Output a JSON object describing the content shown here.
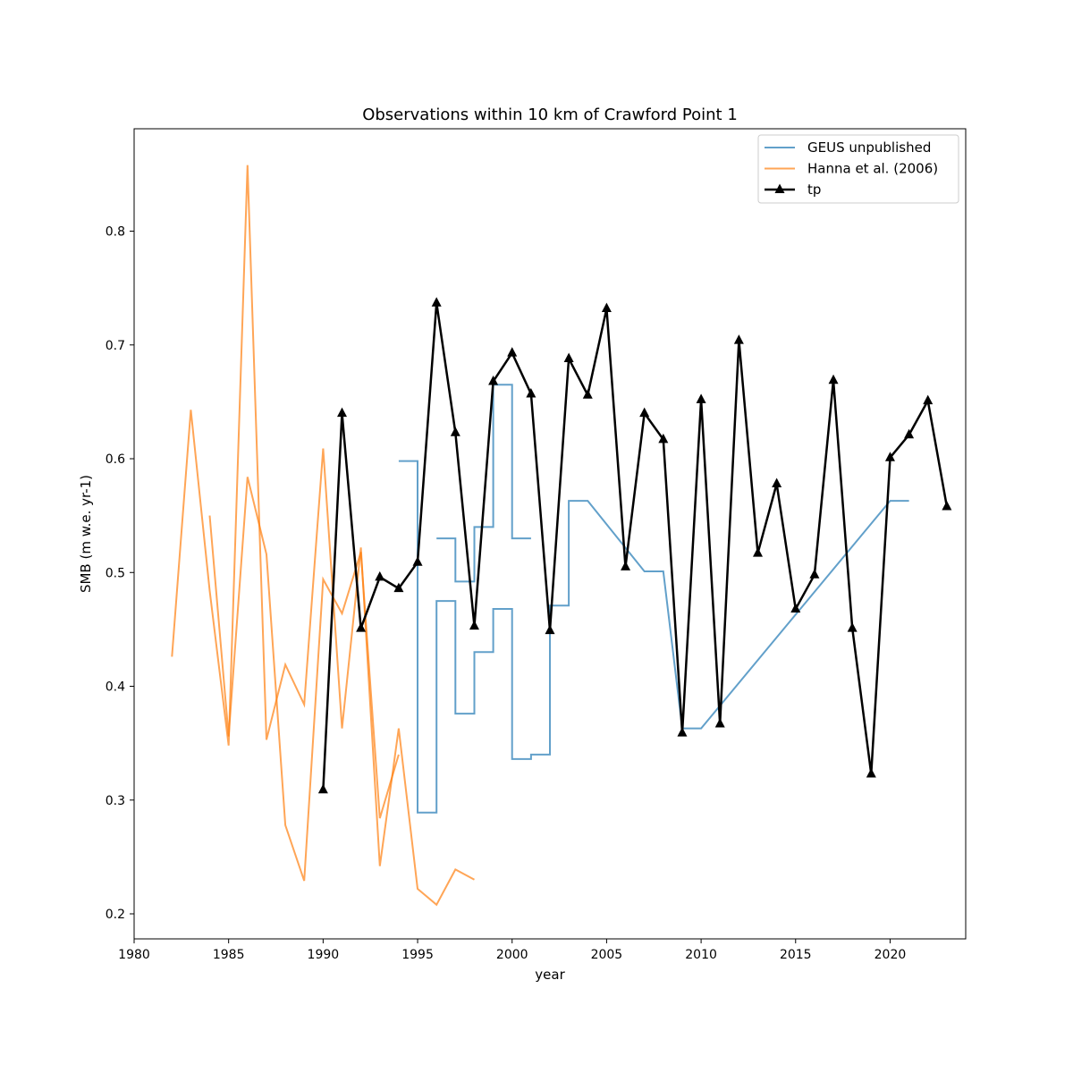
{
  "chart_data": {
    "type": "line",
    "title": "Observations within 10 km of Crawford Point 1",
    "xlabel": "year",
    "ylabel": "SMB (m w.e. yr-1)",
    "xlim": [
      1980,
      2024
    ],
    "ylim": [
      0.178,
      0.89
    ],
    "x_ticks": [
      1980,
      1985,
      1990,
      1995,
      2000,
      2005,
      2010,
      2015,
      2020
    ],
    "y_ticks": [
      0.2,
      0.3,
      0.4,
      0.5,
      0.6,
      0.7,
      0.8
    ],
    "grid": false,
    "legend_position": "top-right",
    "series": [
      {
        "name": "GEUS unpublished",
        "color": "#1f77b4",
        "style": "step",
        "segments": [
          [
            [
              1994,
              0.598
            ],
            [
              1995,
              0.598
            ],
            [
              1995,
              0.289
            ],
            [
              1996,
              0.289
            ],
            [
              1996,
              0.475
            ],
            [
              1997,
              0.475
            ],
            [
              1997,
              0.376
            ],
            [
              1998,
              0.376
            ],
            [
              1998,
              0.43
            ],
            [
              1999,
              0.43
            ],
            [
              1999,
              0.468
            ],
            [
              2000,
              0.468
            ],
            [
              2000,
              0.336
            ],
            [
              2001,
              0.336
            ],
            [
              2001,
              0.34
            ],
            [
              2002,
              0.34
            ],
            [
              2002,
              0.471
            ],
            [
              2003,
              0.471
            ],
            [
              2003,
              0.563
            ],
            [
              2004,
              0.563
            ],
            [
              2007,
              0.501
            ],
            [
              2008,
              0.501
            ],
            [
              2009,
              0.363
            ],
            [
              2010,
              0.363
            ],
            [
              2020,
              0.563
            ],
            [
              2021,
              0.563
            ]
          ],
          [
            [
              1996,
              0.53
            ],
            [
              1997,
              0.53
            ],
            [
              1997,
              0.492
            ],
            [
              1998,
              0.492
            ],
            [
              1998,
              0.54
            ],
            [
              1999,
              0.54
            ],
            [
              1999,
              0.665
            ],
            [
              2000,
              0.665
            ],
            [
              2000,
              0.53
            ],
            [
              2001,
              0.53
            ]
          ]
        ]
      },
      {
        "name": "Hanna et al. (2006)",
        "color": "#ff7f0e",
        "style": "line",
        "segments": [
          [
            [
              1982,
              0.426
            ],
            [
              1983,
              0.643
            ],
            [
              1984,
              0.484
            ],
            [
              1985,
              0.348
            ],
            [
              1986,
              0.858
            ],
            [
              1987,
              0.353
            ],
            [
              1988,
              0.419
            ],
            [
              1989,
              0.384
            ],
            [
              1990,
              0.609
            ],
            [
              1991,
              0.363
            ],
            [
              1992,
              0.522
            ],
            [
              1993,
              0.242
            ],
            [
              1994,
              0.363
            ],
            [
              1995,
              0.222
            ],
            [
              1996,
              0.208
            ],
            [
              1997,
              0.239
            ],
            [
              1998,
              0.23
            ]
          ],
          [
            [
              1984,
              0.55
            ],
            [
              1985,
              0.356
            ],
            [
              1986,
              0.584
            ],
            [
              1987,
              0.516
            ],
            [
              1988,
              0.278
            ],
            [
              1989,
              0.229
            ],
            [
              1990,
              0.494
            ],
            [
              1991,
              0.464
            ],
            [
              1992,
              0.518
            ],
            [
              1993,
              0.284
            ],
            [
              1994,
              0.34
            ]
          ]
        ]
      },
      {
        "name": "tp",
        "color": "#000000",
        "style": "line-marker",
        "marker": "triangle",
        "x": [
          1990,
          1991,
          1992,
          1993,
          1994,
          1995,
          1996,
          1997,
          1998,
          1999,
          2000,
          2001,
          2002,
          2003,
          2004,
          2005,
          2006,
          2007,
          2008,
          2009,
          2010,
          2011,
          2012,
          2013,
          2014,
          2015,
          2016,
          2017,
          2018,
          2019,
          2020,
          2021,
          2022,
          2023
        ],
        "values": [
          0.309,
          0.64,
          0.451,
          0.496,
          0.486,
          0.509,
          0.737,
          0.623,
          0.453,
          0.668,
          0.693,
          0.657,
          0.449,
          0.688,
          0.656,
          0.732,
          0.505,
          0.64,
          0.617,
          0.359,
          0.652,
          0.367,
          0.704,
          0.517,
          0.578,
          0.468,
          0.498,
          0.669,
          0.451,
          0.323,
          0.601,
          0.621,
          0.651,
          0.558
        ]
      }
    ]
  }
}
